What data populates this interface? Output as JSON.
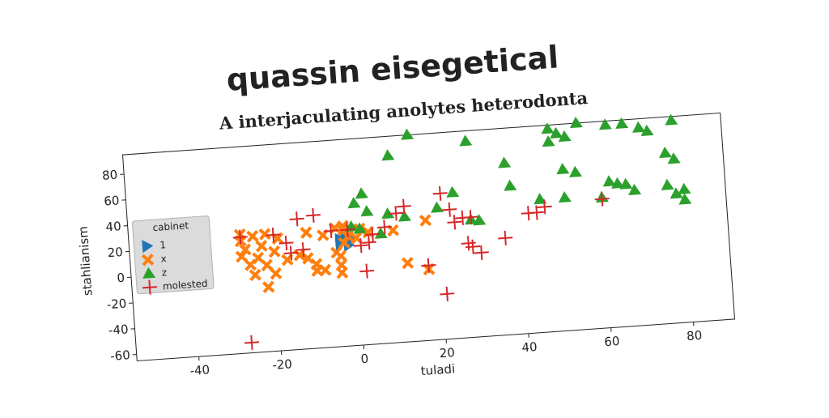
{
  "chart_data": {
    "type": "scatter",
    "title": "quassin eisegetical",
    "subtitle": "A interjaculating anolytes heterodonta",
    "x_label": "tuladi",
    "y_label": "stahlianism",
    "xlim": [
      -55,
      90
    ],
    "ylim": [
      -65,
      95
    ],
    "xticks": [
      -40,
      -20,
      0,
      20,
      40,
      60,
      80
    ],
    "yticks": [
      -60,
      -40,
      -20,
      0,
      20,
      40,
      60,
      80
    ],
    "grid": false,
    "legend": {
      "title": "cabinet",
      "position": "center left"
    },
    "series": [
      {
        "name": "1",
        "color": "#1f77b4",
        "marker": "triangle-right",
        "x": [
          -4,
          -3,
          -2,
          -3,
          -4,
          -1,
          -2,
          -3
        ],
        "y": [
          18,
          16,
          20,
          22,
          14,
          17,
          13,
          24
        ]
      },
      {
        "name": "x",
        "color": "#ff7f0e",
        "marker": "x",
        "x": [
          -28,
          -25,
          -22,
          -19,
          -28,
          -27,
          -23,
          -20,
          -24,
          -28,
          -26,
          -22,
          -17,
          -20,
          -25,
          -22,
          -14,
          -12,
          -10,
          -8,
          -5,
          -10,
          -12,
          -8,
          -5,
          -3,
          -2,
          -3,
          -4,
          -4,
          -4,
          -3,
          0,
          1,
          3,
          9,
          17,
          12,
          17
        ],
        "y": [
          27,
          25,
          26,
          22,
          22,
          15,
          17,
          12,
          8,
          10,
          3,
          2,
          5,
          -5,
          -5,
          -15,
          8,
          5,
          0,
          -5,
          8,
          -5,
          25,
          22,
          27,
          25,
          20,
          15,
          5,
          -2,
          -8,
          28,
          18,
          25,
          22,
          22,
          28,
          -4,
          -10
        ]
      },
      {
        "name": "z",
        "color": "#2ca02c",
        "marker": "triangle-up",
        "x": [
          9,
          14,
          28,
          37,
          38,
          48,
          50,
          48,
          52,
          55,
          62,
          66,
          70,
          72,
          78,
          76,
          78,
          51,
          54,
          62,
          64,
          66,
          68,
          60,
          76,
          80,
          78,
          80,
          45,
          51,
          2,
          0,
          3,
          8,
          12,
          20,
          24,
          28,
          30,
          6,
          1,
          -1
        ],
        "y": [
          80,
          95,
          87,
          68,
          50,
          92,
          88,
          82,
          85,
          95,
          92,
          92,
          88,
          85,
          92,
          67,
          62,
          60,
          57,
          48,
          46,
          45,
          40,
          36,
          42,
          38,
          35,
          30,
          38,
          38,
          52,
          45,
          38,
          35,
          32,
          37,
          48,
          26,
          25,
          20,
          25,
          27
        ]
      },
      {
        "name": "molested",
        "color": "#d62728",
        "marker": "plus",
        "x": [
          -28,
          -14,
          -10,
          -20,
          -17,
          -16,
          -13,
          -6,
          -2,
          1,
          3,
          4,
          7,
          10,
          12,
          21,
          23,
          24,
          26,
          28,
          27,
          28,
          30,
          36,
          42,
          44,
          46,
          60,
          17,
          2,
          21,
          -27
        ],
        "y": [
          25,
          36,
          38,
          25,
          18,
          10,
          12,
          25,
          25,
          12,
          14,
          20,
          25,
          35,
          40,
          48,
          35,
          25,
          28,
          28,
          8,
          5,
          0,
          10,
          28,
          28,
          32,
          35,
          -7,
          -8,
          -30,
          -57
        ]
      }
    ]
  }
}
